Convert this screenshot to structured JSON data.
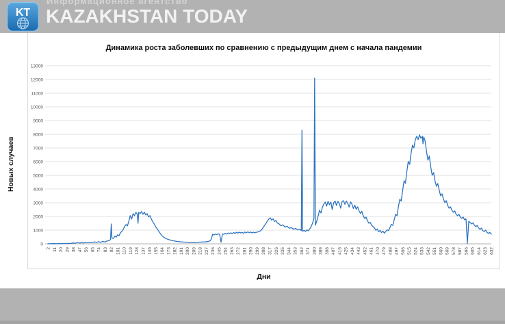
{
  "header": {
    "logo_text": "KT",
    "agency_line": "Информационное агентство",
    "brand": "KAZAKHSTAN TODAY"
  },
  "colors": {
    "header_bg": "#b2b2b2",
    "footer_bg": "#b2b2b2",
    "footer_edge": "#a4a4a4",
    "logo_blue_top": "#5aa7dd",
    "logo_blue_bottom": "#1a6ab0",
    "line": "#2e74c0",
    "grid": "#e2e2e2",
    "axis": "#b0b0b0",
    "tick_text": "#4d4d4d"
  },
  "chart_data": {
    "type": "line",
    "title": "Динамика роста заболевших по сравнению с предыдущим днем с начала пандемии",
    "xlabel": "Дни",
    "ylabel": "Новых случаев",
    "xlim": [
      2,
      632
    ],
    "ylim": [
      0,
      13000
    ],
    "grid": true,
    "legend": false,
    "y_ticks": [
      0,
      1000,
      2000,
      3000,
      4000,
      5000,
      6000,
      7000,
      8000,
      9000,
      10000,
      11000,
      12000,
      13000
    ],
    "x_ticks": [
      2,
      11,
      20,
      29,
      38,
      47,
      56,
      65,
      74,
      83,
      92,
      101,
      110,
      119,
      128,
      137,
      146,
      155,
      164,
      173,
      182,
      191,
      200,
      209,
      218,
      227,
      236,
      245,
      254,
      263,
      272,
      281,
      290,
      299,
      308,
      317,
      326,
      335,
      344,
      353,
      362,
      371,
      380,
      389,
      398,
      407,
      416,
      425,
      434,
      443,
      452,
      461,
      470,
      479,
      488,
      497,
      506,
      515,
      524,
      533,
      542,
      551,
      560,
      569,
      578,
      587,
      596,
      605,
      614,
      623,
      632
    ],
    "annotations": {
      "spike_1": {
        "day": 363,
        "value": 8300
      },
      "spike_2": {
        "day": 381,
        "value": 12100
      },
      "drop": {
        "day": 598,
        "value": 40
      },
      "wave_1_peak": {
        "day": 127,
        "value": 2300
      },
      "wave_2_peak": {
        "day": 318,
        "value": 1900
      },
      "wave_3_band": {
        "days": "388-445",
        "value": "2500-3150"
      },
      "wave_4_peak": {
        "day": 530,
        "value": 7950
      }
    },
    "series": [
      {
        "points": [
          [
            2,
            5
          ],
          [
            6,
            10
          ],
          [
            10,
            15
          ],
          [
            14,
            12
          ],
          [
            18,
            20
          ],
          [
            22,
            18
          ],
          [
            26,
            25
          ],
          [
            30,
            30
          ],
          [
            34,
            28
          ],
          [
            38,
            65
          ],
          [
            41,
            45
          ],
          [
            44,
            95
          ],
          [
            47,
            60
          ],
          [
            50,
            85
          ],
          [
            53,
            65
          ],
          [
            56,
            115
          ],
          [
            59,
            80
          ],
          [
            62,
            125
          ],
          [
            65,
            90
          ],
          [
            68,
            145
          ],
          [
            71,
            105
          ],
          [
            74,
            155
          ],
          [
            77,
            115
          ],
          [
            80,
            175
          ],
          [
            83,
            135
          ],
          [
            86,
            205
          ],
          [
            89,
            245
          ],
          [
            91,
            310
          ],
          [
            92,
            1450
          ],
          [
            93,
            430
          ],
          [
            95,
            390
          ],
          [
            97,
            560
          ],
          [
            99,
            490
          ],
          [
            101,
            660
          ],
          [
            103,
            590
          ],
          [
            105,
            810
          ],
          [
            107,
            910
          ],
          [
            109,
            1060
          ],
          [
            111,
            1260
          ],
          [
            113,
            1410
          ],
          [
            115,
            1310
          ],
          [
            117,
            1660
          ],
          [
            119,
            2060
          ],
          [
            121,
            1810
          ],
          [
            123,
            2210
          ],
          [
            125,
            2060
          ],
          [
            127,
            2300
          ],
          [
            129,
            2160
          ],
          [
            130,
            1500
          ],
          [
            131,
            2300
          ],
          [
            133,
            2210
          ],
          [
            135,
            2360
          ],
          [
            137,
            2160
          ],
          [
            139,
            2310
          ],
          [
            141,
            2110
          ],
          [
            143,
            2210
          ],
          [
            145,
            1960
          ],
          [
            147,
            2060
          ],
          [
            149,
            1810
          ],
          [
            151,
            1610
          ],
          [
            153,
            1460
          ],
          [
            155,
            1260
          ],
          [
            157,
            1110
          ],
          [
            159,
            960
          ],
          [
            161,
            810
          ],
          [
            163,
            660
          ],
          [
            166,
            510
          ],
          [
            169,
            410
          ],
          [
            172,
            340
          ],
          [
            176,
            275
          ],
          [
            180,
            225
          ],
          [
            185,
            180
          ],
          [
            190,
            150
          ],
          [
            195,
            132
          ],
          [
            200,
            120
          ],
          [
            205,
            112
          ],
          [
            210,
            108
          ],
          [
            215,
            118
          ],
          [
            220,
            128
          ],
          [
            225,
            142
          ],
          [
            229,
            165
          ],
          [
            232,
            210
          ],
          [
            234,
            320
          ],
          [
            236,
            690
          ],
          [
            238,
            650
          ],
          [
            240,
            715
          ],
          [
            242,
            675
          ],
          [
            244,
            735
          ],
          [
            246,
            695
          ],
          [
            248,
            115
          ],
          [
            250,
            725
          ],
          [
            252,
            695
          ],
          [
            254,
            765
          ],
          [
            256,
            715
          ],
          [
            258,
            795
          ],
          [
            260,
            745
          ],
          [
            262,
            805
          ],
          [
            264,
            755
          ],
          [
            266,
            825
          ],
          [
            268,
            765
          ],
          [
            270,
            845
          ],
          [
            272,
            785
          ],
          [
            274,
            855
          ],
          [
            276,
            795
          ],
          [
            278,
            835
          ],
          [
            280,
            775
          ],
          [
            282,
            865
          ],
          [
            284,
            805
          ],
          [
            286,
            875
          ],
          [
            288,
            815
          ],
          [
            290,
            865
          ],
          [
            292,
            795
          ],
          [
            294,
            855
          ],
          [
            296,
            805
          ],
          [
            298,
            845
          ],
          [
            300,
            865
          ],
          [
            302,
            905
          ],
          [
            304,
            955
          ],
          [
            306,
            1055
          ],
          [
            308,
            1205
          ],
          [
            310,
            1355
          ],
          [
            312,
            1505
          ],
          [
            314,
            1685
          ],
          [
            316,
            1825
          ],
          [
            318,
            1905
          ],
          [
            320,
            1725
          ],
          [
            322,
            1835
          ],
          [
            324,
            1625
          ],
          [
            326,
            1705
          ],
          [
            328,
            1525
          ],
          [
            330,
            1475
          ],
          [
            333,
            1325
          ],
          [
            336,
            1385
          ],
          [
            339,
            1225
          ],
          [
            342,
            1285
          ],
          [
            345,
            1135
          ],
          [
            348,
            1185
          ],
          [
            351,
            1065
          ],
          [
            354,
            1125
          ],
          [
            357,
            1015
          ],
          [
            360,
            1075
          ],
          [
            362,
            965
          ],
          [
            363,
            8300
          ],
          [
            364,
            925
          ],
          [
            366,
            985
          ],
          [
            368,
            905
          ],
          [
            370,
            1025
          ],
          [
            372,
            955
          ],
          [
            374,
            1085
          ],
          [
            376,
            1255
          ],
          [
            378,
            1505
          ],
          [
            380,
            1855
          ],
          [
            381,
            12100
          ],
          [
            382,
            1355
          ],
          [
            384,
            1655
          ],
          [
            386,
            2055
          ],
          [
            388,
            2455
          ],
          [
            390,
            2255
          ],
          [
            392,
            2655
          ],
          [
            394,
            2905
          ],
          [
            396,
            3055
          ],
          [
            398,
            2755
          ],
          [
            400,
            3105
          ],
          [
            402,
            2855
          ],
          [
            404,
            3055
          ],
          [
            406,
            2505
          ],
          [
            408,
            3005
          ],
          [
            410,
            3125
          ],
          [
            412,
            2805
          ],
          [
            414,
            3105
          ],
          [
            416,
            2955
          ],
          [
            418,
            2605
          ],
          [
            420,
            3085
          ],
          [
            422,
            3155
          ],
          [
            424,
            2885
          ],
          [
            426,
            3125
          ],
          [
            428,
            2955
          ],
          [
            430,
            2685
          ],
          [
            432,
            3065
          ],
          [
            434,
            2905
          ],
          [
            436,
            2585
          ],
          [
            438,
            2825
          ],
          [
            440,
            2525
          ],
          [
            442,
            2705
          ],
          [
            444,
            2425
          ],
          [
            446,
            2225
          ],
          [
            448,
            2385
          ],
          [
            450,
            2055
          ],
          [
            452,
            1855
          ],
          [
            454,
            1955
          ],
          [
            456,
            1685
          ],
          [
            458,
            1505
          ],
          [
            460,
            1565
          ],
          [
            462,
            1355
          ],
          [
            464,
            1255
          ],
          [
            466,
            1155
          ],
          [
            468,
            985
          ],
          [
            470,
            1085
          ],
          [
            472,
            885
          ],
          [
            474,
            985
          ],
          [
            476,
            825
          ],
          [
            478,
            925
          ],
          [
            480,
            785
          ],
          [
            482,
            905
          ],
          [
            484,
            1025
          ],
          [
            486,
            965
          ],
          [
            488,
            1185
          ],
          [
            490,
            1425
          ],
          [
            492,
            1345
          ],
          [
            494,
            1755
          ],
          [
            496,
            2155
          ],
          [
            498,
            2055
          ],
          [
            500,
            2705
          ],
          [
            502,
            3255
          ],
          [
            504,
            3125
          ],
          [
            506,
            3905
          ],
          [
            508,
            4605
          ],
          [
            510,
            4425
          ],
          [
            512,
            5305
          ],
          [
            514,
            6005
          ],
          [
            516,
            5805
          ],
          [
            518,
            6605
          ],
          [
            520,
            7205
          ],
          [
            522,
            7005
          ],
          [
            524,
            7605
          ],
          [
            526,
            7855
          ],
          [
            528,
            7605
          ],
          [
            530,
            7955
          ],
          [
            532,
            7705
          ],
          [
            534,
            7855
          ],
          [
            535,
            7305
          ],
          [
            536,
            7805
          ],
          [
            538,
            7505
          ],
          [
            540,
            6705
          ],
          [
            542,
            6105
          ],
          [
            544,
            6405
          ],
          [
            546,
            5605
          ],
          [
            548,
            5005
          ],
          [
            550,
            5205
          ],
          [
            552,
            4605
          ],
          [
            554,
            4205
          ],
          [
            556,
            4405
          ],
          [
            558,
            3905
          ],
          [
            560,
            3505
          ],
          [
            562,
            3655
          ],
          [
            564,
            3255
          ],
          [
            566,
            3005
          ],
          [
            568,
            3155
          ],
          [
            570,
            2805
          ],
          [
            572,
            2605
          ],
          [
            574,
            2705
          ],
          [
            576,
            2455
          ],
          [
            578,
            2305
          ],
          [
            580,
            2405
          ],
          [
            582,
            2155
          ],
          [
            584,
            2055
          ],
          [
            586,
            2155
          ],
          [
            588,
            1955
          ],
          [
            590,
            1855
          ],
          [
            592,
            1955
          ],
          [
            594,
            1755
          ],
          [
            596,
            1835
          ],
          [
            598,
            40
          ],
          [
            600,
            1655
          ],
          [
            602,
            1555
          ],
          [
            604,
            1455
          ],
          [
            606,
            1535
          ],
          [
            608,
            1355
          ],
          [
            610,
            1255
          ],
          [
            612,
            1355
          ],
          [
            614,
            1155
          ],
          [
            616,
            1055
          ],
          [
            618,
            1155
          ],
          [
            620,
            955
          ],
          [
            622,
            905
          ],
          [
            624,
            1005
          ],
          [
            626,
            835
          ],
          [
            628,
            765
          ],
          [
            630,
            835
          ],
          [
            632,
            705
          ]
        ]
      }
    ]
  }
}
